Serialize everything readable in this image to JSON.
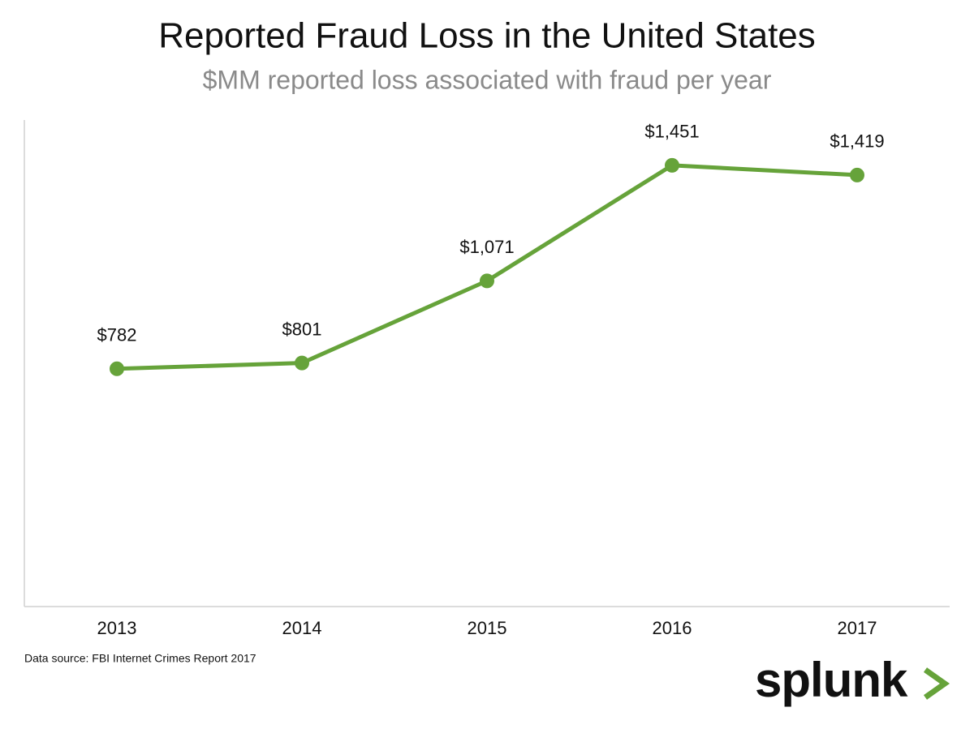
{
  "chart_data": {
    "type": "line",
    "title": "Reported Fraud Loss in the United States",
    "subtitle": "$MM reported loss associated with fraud per year",
    "categories": [
      "2013",
      "2014",
      "2015",
      "2016",
      "2017"
    ],
    "values": [
      782,
      801,
      1071,
      1451,
      1419
    ],
    "value_labels": [
      "$782",
      "$801",
      "$1,071",
      "$1,451",
      "$1,419"
    ],
    "color": "#66a33a",
    "ylim": [
      0,
      1600
    ],
    "grid": false,
    "source": "Data source: FBI Internet Crimes Report 2017",
    "logo": "splunk"
  }
}
